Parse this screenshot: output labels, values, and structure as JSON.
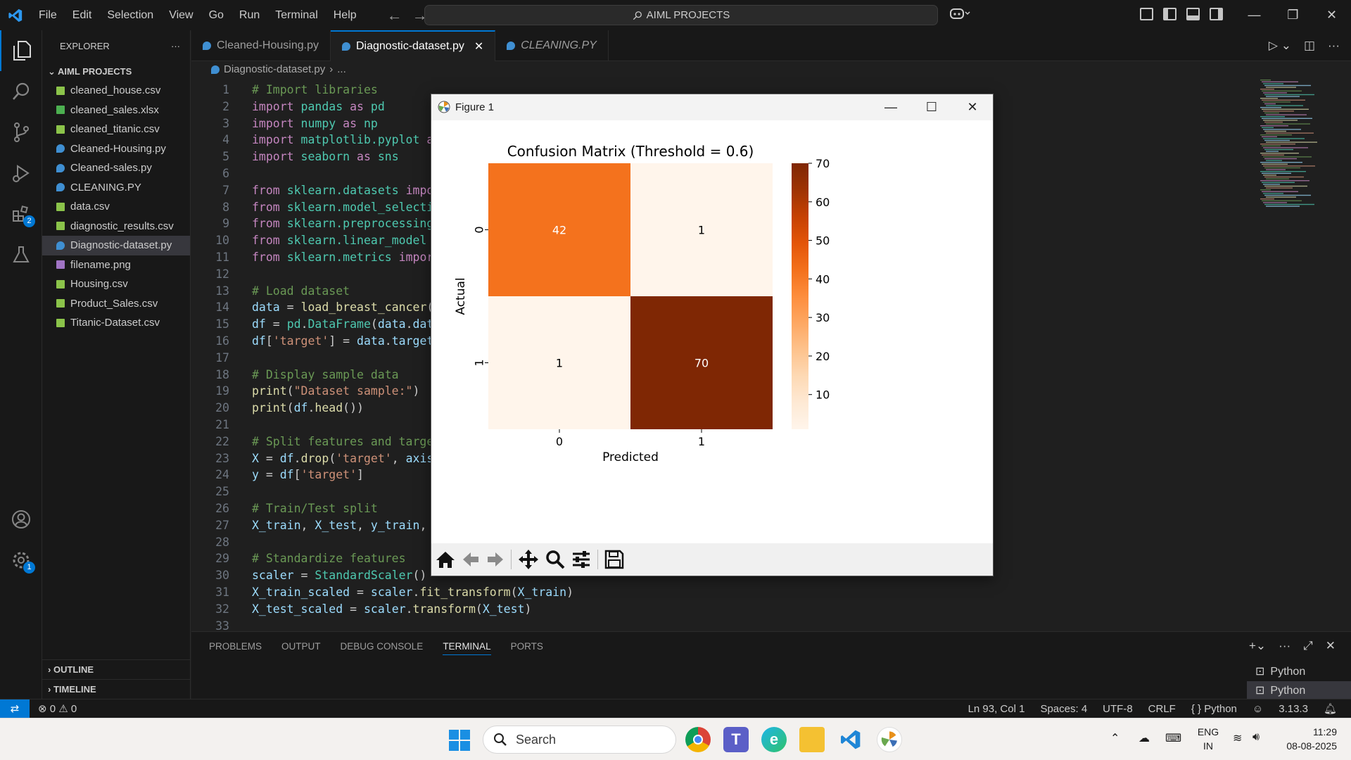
{
  "window": {
    "search_text": "AIML PROJECTS",
    "menu": [
      "File",
      "Edit",
      "Selection",
      "View",
      "Go",
      "Run",
      "Terminal",
      "Help"
    ]
  },
  "explorer": {
    "title": "EXPLORER",
    "folder": "AIML PROJECTS",
    "files": [
      {
        "name": "cleaned_house.csv",
        "type": "csv"
      },
      {
        "name": "cleaned_sales.xlsx",
        "type": "xlsx"
      },
      {
        "name": "cleaned_titanic.csv",
        "type": "csv"
      },
      {
        "name": "Cleaned-Housing.py",
        "type": "py"
      },
      {
        "name": "Cleaned-sales.py",
        "type": "py"
      },
      {
        "name": "CLEANING.PY",
        "type": "py"
      },
      {
        "name": "data.csv",
        "type": "csv"
      },
      {
        "name": "diagnostic_results.csv",
        "type": "csv"
      },
      {
        "name": "Diagnostic-dataset.py",
        "type": "py",
        "selected": true
      },
      {
        "name": "filename.png",
        "type": "png"
      },
      {
        "name": "Housing.csv",
        "type": "csv"
      },
      {
        "name": "Product_Sales.csv",
        "type": "csv"
      },
      {
        "name": "Titanic-Dataset.csv",
        "type": "csv"
      }
    ],
    "outline": "OUTLINE",
    "timeline": "TIMELINE"
  },
  "activity": {
    "extensions_badge": "2",
    "settings_badge": "1"
  },
  "tabs": [
    {
      "label": "Cleaned-Housing.py",
      "active": false
    },
    {
      "label": "Diagnostic-dataset.py",
      "active": true
    },
    {
      "label": "CLEANING.PY",
      "active": false
    }
  ],
  "breadcrumb": {
    "file": "Diagnostic-dataset.py",
    "rest": "..."
  },
  "code_lines": [
    {
      "n": "1",
      "html": "<span class=\"cm\"># Import libraries</span>"
    },
    {
      "n": "2",
      "html": "<span class=\"kw\">import</span> <span class=\"cl\">pandas</span> <span class=\"kw\">as</span> <span class=\"cl\">pd</span>"
    },
    {
      "n": "3",
      "html": "<span class=\"kw\">import</span> <span class=\"cl\">numpy</span> <span class=\"kw\">as</span> <span class=\"cl\">np</span>"
    },
    {
      "n": "4",
      "html": "<span class=\"kw\">import</span> <span class=\"cl\">matplotlib.pyplot</span> <span class=\"kw\">as</span>"
    },
    {
      "n": "5",
      "html": "<span class=\"kw\">import</span> <span class=\"cl\">seaborn</span> <span class=\"kw\">as</span> <span class=\"cl\">sns</span>"
    },
    {
      "n": "6",
      "html": ""
    },
    {
      "n": "7",
      "html": "<span class=\"kw\">from</span> <span class=\"cl\">sklearn.datasets</span> <span class=\"kw\">impor</span>"
    },
    {
      "n": "8",
      "html": "<span class=\"kw\">from</span> <span class=\"cl\">sklearn.model_selectio</span>"
    },
    {
      "n": "9",
      "html": "<span class=\"kw\">from</span> <span class=\"cl\">sklearn.preprocessing</span>"
    },
    {
      "n": "10",
      "html": "<span class=\"kw\">from</span> <span class=\"cl\">sklearn.linear_model</span>"
    },
    {
      "n": "11",
      "html": "<span class=\"kw\">from</span> <span class=\"cl\">sklearn.metrics</span> <span class=\"kw\">impor</span>"
    },
    {
      "n": "12",
      "html": ""
    },
    {
      "n": "13",
      "html": "<span class=\"cm\"># Load dataset</span>"
    },
    {
      "n": "14",
      "html": "<span class=\"vr\">data</span> = <span class=\"fn\">load_breast_cancer</span>("
    },
    {
      "n": "15",
      "html": "<span class=\"vr\">df</span> = <span class=\"cl\">pd</span>.<span class=\"cl\">DataFrame</span>(<span class=\"vr\">data</span>.<span class=\"vr\">data</span>"
    },
    {
      "n": "16",
      "html": "<span class=\"vr\">df</span>[<span class=\"st\">'target'</span>] = <span class=\"vr\">data</span>.<span class=\"vr\">target</span>"
    },
    {
      "n": "17",
      "html": ""
    },
    {
      "n": "18",
      "html": "<span class=\"cm\"># Display sample data</span>"
    },
    {
      "n": "19",
      "html": "<span class=\"fn\">print</span>(<span class=\"st\">\"Dataset sample:\"</span>)"
    },
    {
      "n": "20",
      "html": "<span class=\"fn\">print</span>(<span class=\"vr\">df</span>.<span class=\"fn\">head</span>())"
    },
    {
      "n": "21",
      "html": ""
    },
    {
      "n": "22",
      "html": "<span class=\"cm\"># Split features and target</span>"
    },
    {
      "n": "23",
      "html": "<span class=\"vr\">X</span> = <span class=\"vr\">df</span>.<span class=\"fn\">drop</span>(<span class=\"st\">'target'</span>, <span class=\"vr\">axis</span>="
    },
    {
      "n": "24",
      "html": "<span class=\"vr\">y</span> = <span class=\"vr\">df</span>[<span class=\"st\">'target'</span>]"
    },
    {
      "n": "25",
      "html": ""
    },
    {
      "n": "26",
      "html": "<span class=\"cm\"># Train/Test split</span>"
    },
    {
      "n": "27",
      "html": "<span class=\"vr\">X_train</span>, <span class=\"vr\">X_test</span>, <span class=\"vr\">y_train</span>, <span class=\"vr\">y</span>"
    },
    {
      "n": "28",
      "html": ""
    },
    {
      "n": "29",
      "html": "<span class=\"cm\"># Standardize features</span>"
    },
    {
      "n": "30",
      "html": "<span class=\"vr\">scaler</span> = <span class=\"cl\">StandardScaler</span>()"
    },
    {
      "n": "31",
      "html": "<span class=\"vr\">X_train_scaled</span> = <span class=\"vr\">scaler</span>.<span class=\"fn\">fit_transform</span>(<span class=\"vr\">X_train</span>)"
    },
    {
      "n": "32",
      "html": "<span class=\"vr\">X_test_scaled</span> = <span class=\"vr\">scaler</span>.<span class=\"fn\">transform</span>(<span class=\"vr\">X_test</span>)"
    },
    {
      "n": "33",
      "html": ""
    }
  ],
  "panel": {
    "tabs": [
      "PROBLEMS",
      "OUTPUT",
      "DEBUG CONSOLE",
      "TERMINAL",
      "PORTS"
    ],
    "active_tab": "TERMINAL",
    "terminals": [
      "Python",
      "Python"
    ]
  },
  "statusbar": {
    "errors": "0",
    "warnings": "0",
    "position": "Ln 93, Col 1",
    "spaces": "Spaces: 4",
    "encoding": "UTF-8",
    "eol": "CRLF",
    "language": "Python",
    "version": "3.13.3"
  },
  "figure": {
    "title": "Figure 1"
  },
  "chart_data": {
    "type": "heatmap",
    "title": "Confusion Matrix (Threshold = 0.6)",
    "xlabel": "Predicted",
    "ylabel": "Actual",
    "x_categories": [
      "0",
      "1"
    ],
    "y_categories": [
      "0",
      "1"
    ],
    "values": [
      [
        42,
        1
      ],
      [
        1,
        70
      ]
    ],
    "colormap": "Oranges",
    "colorbar": {
      "min": 1,
      "max": 70,
      "ticks": [
        10,
        20,
        30,
        40,
        50,
        60,
        70
      ]
    }
  },
  "taskbar": {
    "search_placeholder": "Search",
    "lang_top": "ENG",
    "lang_bottom": "IN",
    "time": "11:29",
    "date": "08-08-2025"
  }
}
